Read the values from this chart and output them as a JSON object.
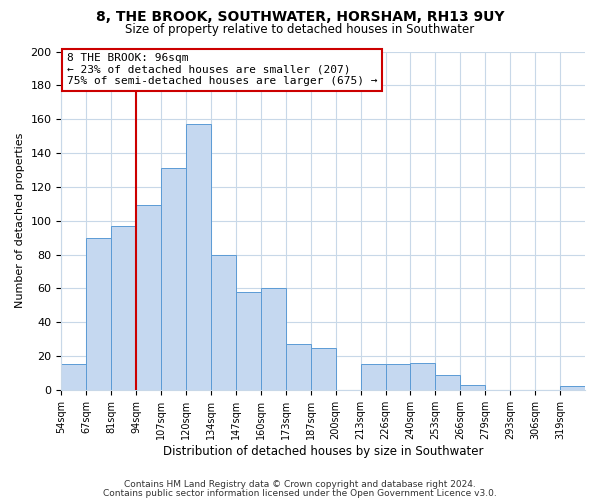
{
  "title": "8, THE BROOK, SOUTHWATER, HORSHAM, RH13 9UY",
  "subtitle": "Size of property relative to detached houses in Southwater",
  "xlabel": "Distribution of detached houses by size in Southwater",
  "ylabel": "Number of detached properties",
  "bar_color": "#c5d8f0",
  "bar_edge_color": "#5b9bd5",
  "bin_labels": [
    "54sqm",
    "67sqm",
    "81sqm",
    "94sqm",
    "107sqm",
    "120sqm",
    "134sqm",
    "147sqm",
    "160sqm",
    "173sqm",
    "187sqm",
    "200sqm",
    "213sqm",
    "226sqm",
    "240sqm",
    "253sqm",
    "266sqm",
    "279sqm",
    "293sqm",
    "306sqm",
    "319sqm"
  ],
  "bar_heights": [
    15,
    90,
    97,
    109,
    131,
    157,
    80,
    58,
    60,
    27,
    25,
    0,
    15,
    15,
    16,
    9,
    3,
    0,
    0,
    0,
    2
  ],
  "ylim": [
    0,
    200
  ],
  "yticks": [
    0,
    20,
    40,
    60,
    80,
    100,
    120,
    140,
    160,
    180,
    200
  ],
  "vline_color": "#cc0000",
  "vline_x_index": 3,
  "annotation_title": "8 THE BROOK: 96sqm",
  "annotation_line1": "← 23% of detached houses are smaller (207)",
  "annotation_line2": "75% of semi-detached houses are larger (675) →",
  "annotation_box_color": "#ffffff",
  "annotation_box_edge": "#cc0000",
  "footer1": "Contains HM Land Registry data © Crown copyright and database right 2024.",
  "footer2": "Contains public sector information licensed under the Open Government Licence v3.0.",
  "background_color": "#ffffff",
  "grid_color": "#c8d8e8"
}
